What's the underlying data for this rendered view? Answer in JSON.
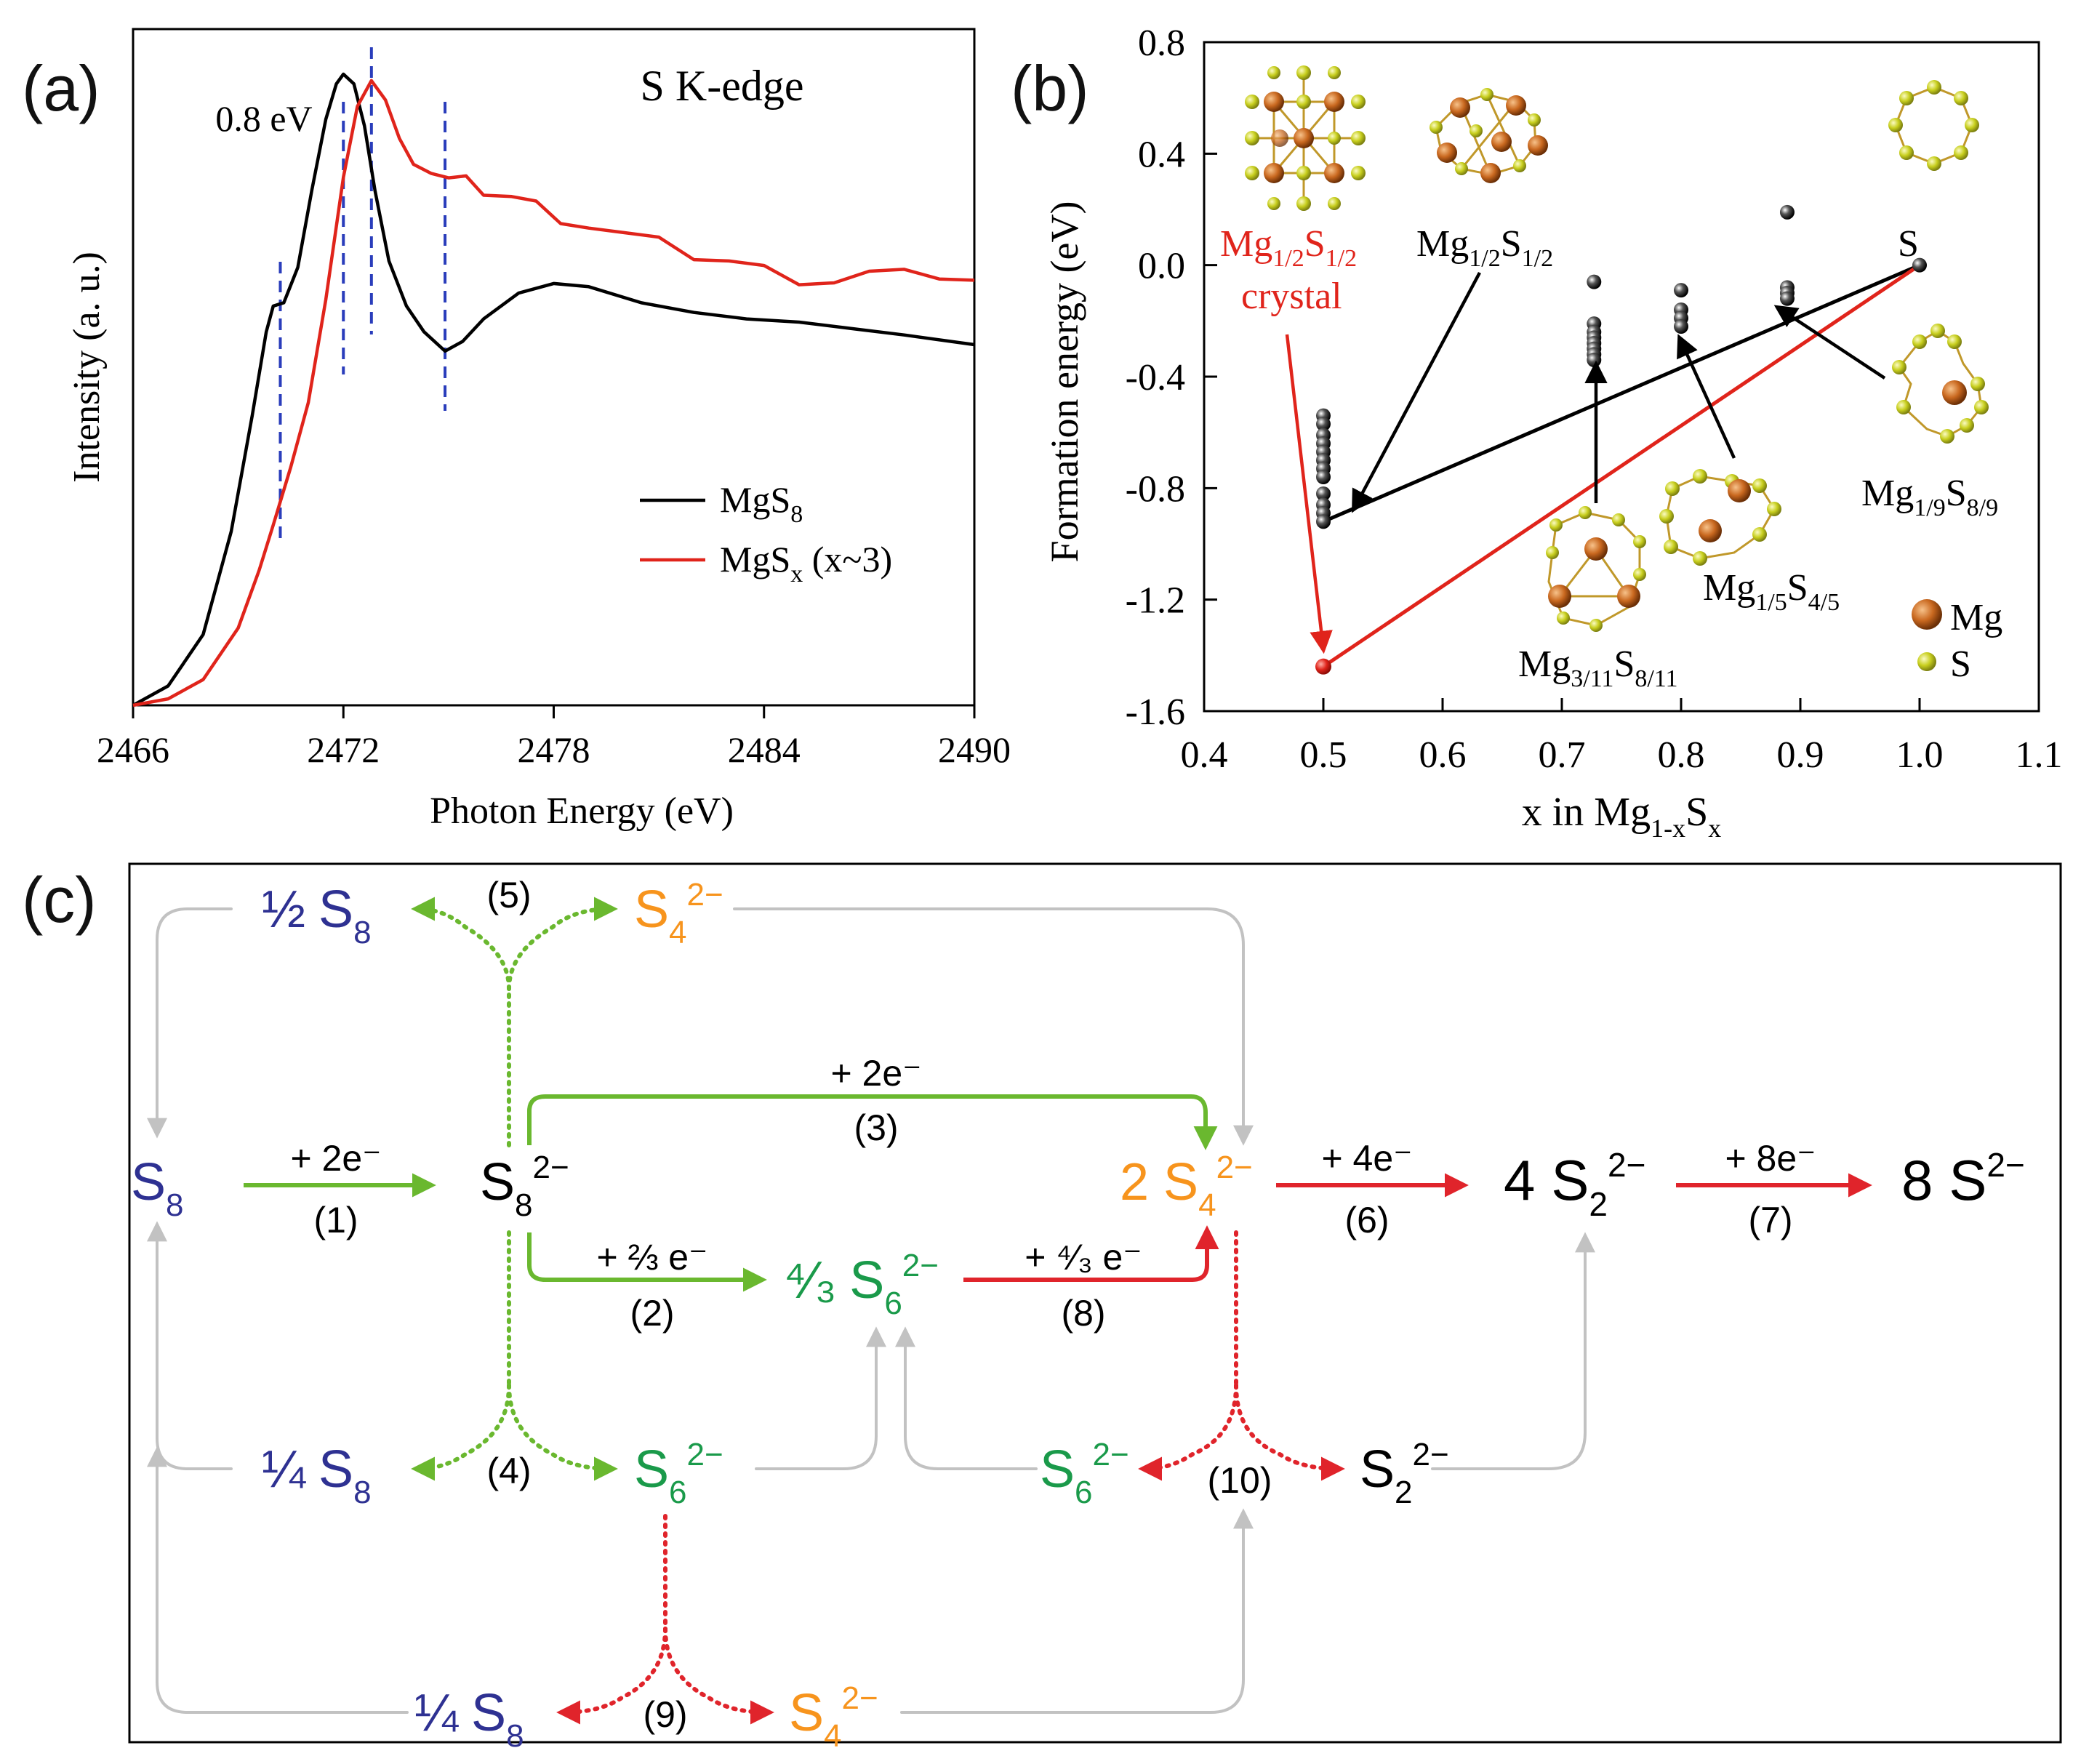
{
  "panel_a": {
    "label": "(a)",
    "title": "S K-edge",
    "annotation": "0.8 eV",
    "legend": {
      "mgs8": {
        "text": "MgS",
        "sub": "8",
        "color": "#000000"
      },
      "mgsx": {
        "text": "MgS",
        "sub": "x",
        "suffix": " (x~3)",
        "color": "#e0241b"
      }
    },
    "vline_color": "#2a3dbb"
  },
  "panel_b": {
    "label": "(b)",
    "legend_mg": "Mg",
    "legend_s": "S",
    "mg_color": "#c9681f",
    "s_color": "#c8cf1e",
    "labels": {
      "crystal_main": "Mg",
      "crystal_sub1": "1/2",
      "crystal_s": "S",
      "crystal_sub2": "1/2",
      "crystal_word": "crystal",
      "mg12_main": "Mg",
      "mg12_sub1": "1/2",
      "mg12_s": "S",
      "mg12_sub2": "1/2",
      "s_label": "S",
      "mg311_main": "Mg",
      "mg311_sub1": "3/11",
      "mg311_s": "S",
      "mg311_sub2": "8/11",
      "mg15_main": "Mg",
      "mg15_sub1": "1/5",
      "mg15_s": "S",
      "mg15_sub2": "4/5",
      "mg19_main": "Mg",
      "mg19_sub1": "1/9",
      "mg19_s": "S",
      "mg19_sub2": "8/9"
    }
  },
  "panel_c": {
    "label": "(c)",
    "colors": {
      "blue": "#2e3192",
      "orange": "#f7941d",
      "green": "#1a9a4a",
      "black": "#000000",
      "lgreen": "#6ab82f",
      "red": "#e0242b",
      "gray": "#c2c2c2"
    },
    "species": {
      "s8_main": "S",
      "s8_sub": "8",
      "s8_2m": "S",
      "s8_2m_sub": "8",
      "s8_2m_sup": "2−",
      "half_s8_coef": "½",
      "half_s8": "S",
      "half_s8_sub": "8",
      "s4_top": "S",
      "s4_top_sub": "4",
      "s4_top_sup": "2−",
      "two_s4_coef": "2",
      "two_s4": "S",
      "two_s4_sub": "4",
      "two_s4_sup": "2−",
      "four_s2_coef": "4",
      "four_s2": "S",
      "four_s2_sub": "2",
      "four_s2_sup": "2−",
      "eight_s_coef": "8",
      "eight_s": "S",
      "eight_s_sup": "2−",
      "fourthirds_coef": "⁴⁄₃",
      "s6_mid": "S",
      "s6_mid_sub": "6",
      "s6_mid_sup": "2−",
      "quarter_s8_a_coef": "¼",
      "quarter_s8_a": "S",
      "quarter_s8_a_sub": "8",
      "s6_left": "S",
      "s6_left_sub": "6",
      "s6_left_sup": "2−",
      "s6_right": "S",
      "s6_right_sub": "6",
      "s6_right_sup": "2−",
      "s2_right": "S",
      "s2_right_sub": "2",
      "s2_right_sup": "2−",
      "quarter_s8_b_coef": "¼",
      "quarter_s8_b": "S",
      "quarter_s8_b_sub": "8",
      "s4_bottom": "S",
      "s4_bottom_sub": "4",
      "s4_bottom_sup": "2−"
    },
    "reactions": {
      "r1_e": "+ 2e⁻",
      "r1": "(1)",
      "r2_e": "+ ⅔ e⁻",
      "r2": "(2)",
      "r3_e": "+ 2e⁻",
      "r3": "(3)",
      "r4": "(4)",
      "r5": "(5)",
      "r6_e": "+ 4e⁻",
      "r6": "(6)",
      "r7_e": "+ 8e⁻",
      "r7": "(7)",
      "r8_e": "+ ⁴⁄₃ e⁻",
      "r8": "(8)",
      "r9": "(9)",
      "r10": "(10)"
    }
  },
  "chart_data": [
    {
      "type": "line",
      "id": "panel-a",
      "title": "S K-edge",
      "xlabel": "Photon Energy (eV)",
      "ylabel": "Intensity (a. u.)",
      "xlim": [
        2466,
        2490
      ],
      "ylim": [
        0,
        1.05
      ],
      "xticks": [
        2466,
        2472,
        2478,
        2484,
        2490
      ],
      "annotation": "0.8 eV",
      "vlines": [
        2470.2,
        2472.0,
        2472.8,
        2474.9
      ],
      "series": [
        {
          "name": "MgS8",
          "color": "#000000",
          "x": [
            2466.0,
            2467.0,
            2468.0,
            2468.8,
            2469.4,
            2469.8,
            2470.0,
            2470.3,
            2470.7,
            2471.1,
            2471.5,
            2471.8,
            2472.0,
            2472.3,
            2472.6,
            2472.9,
            2473.3,
            2473.8,
            2474.3,
            2474.9,
            2475.4,
            2476.0,
            2477.0,
            2478.0,
            2479.0,
            2480.5,
            2482.0,
            2483.5,
            2485.0,
            2486.5,
            2488.0,
            2490.0
          ],
          "y": [
            0.0,
            0.03,
            0.11,
            0.27,
            0.45,
            0.58,
            0.62,
            0.625,
            0.68,
            0.8,
            0.91,
            0.965,
            0.98,
            0.965,
            0.9,
            0.8,
            0.69,
            0.62,
            0.58,
            0.55,
            0.565,
            0.6,
            0.64,
            0.655,
            0.65,
            0.625,
            0.61,
            0.6,
            0.595,
            0.585,
            0.575,
            0.56
          ]
        },
        {
          "name": "MgSx (x~3)",
          "color": "#e0241b",
          "x": [
            2466.0,
            2467.0,
            2468.0,
            2469.0,
            2469.6,
            2470.0,
            2470.5,
            2471.0,
            2471.5,
            2472.0,
            2472.4,
            2472.8,
            2473.2,
            2473.6,
            2474.0,
            2474.5,
            2475.0,
            2475.5,
            2476.0,
            2476.8,
            2477.5,
            2478.2,
            2479.0,
            2480.0,
            2481.0,
            2482.0,
            2483.0,
            2484.0,
            2485.0,
            2486.0,
            2487.0,
            2488.0,
            2489.0,
            2490.0
          ],
          "y": [
            0.0,
            0.01,
            0.04,
            0.12,
            0.21,
            0.28,
            0.37,
            0.47,
            0.63,
            0.82,
            0.93,
            0.97,
            0.94,
            0.88,
            0.84,
            0.83,
            0.815,
            0.81,
            0.8,
            0.79,
            0.775,
            0.76,
            0.745,
            0.73,
            0.715,
            0.7,
            0.69,
            0.675,
            0.665,
            0.66,
            0.67,
            0.665,
            0.67,
            0.66
          ]
        }
      ]
    },
    {
      "type": "scatter",
      "id": "panel-b",
      "xlabel": "x in Mg1-xSx",
      "ylabel": "Formation energy (eV)",
      "xlim": [
        0.4,
        1.1
      ],
      "ylim": [
        -1.6,
        0.8
      ],
      "xticks": [
        0.4,
        0.5,
        0.6,
        0.7,
        0.8,
        0.9,
        1.0,
        1.1
      ],
      "yticks": [
        0.8,
        0.4,
        0.0,
        -0.4,
        -0.8,
        -1.2,
        -1.6
      ],
      "series": [
        {
          "name": "clusters",
          "color": "#000000",
          "x": [
            0.5,
            0.5,
            0.5,
            0.5,
            0.5,
            0.5,
            0.5,
            0.5,
            0.5,
            0.5,
            0.5,
            0.5,
            0.727,
            0.727,
            0.727,
            0.727,
            0.727,
            0.727,
            0.727,
            0.727,
            0.8,
            0.8,
            0.8,
            0.8,
            0.889,
            0.889,
            0.889,
            0.889,
            1.0
          ],
          "y": [
            -0.54,
            -0.57,
            -0.61,
            -0.64,
            -0.67,
            -0.7,
            -0.73,
            -0.76,
            -0.82,
            -0.86,
            -0.89,
            -0.92,
            -0.06,
            -0.21,
            -0.24,
            -0.26,
            -0.28,
            -0.3,
            -0.32,
            -0.34,
            -0.09,
            -0.16,
            -0.19,
            -0.22,
            0.19,
            -0.08,
            -0.1,
            -0.12,
            0.0
          ]
        },
        {
          "name": "Mg1/2S1/2 crystal",
          "color": "#e0241b",
          "x": [
            0.5
          ],
          "y": [
            -1.44
          ]
        }
      ],
      "hull_lines": [
        {
          "color": "#000000",
          "x": [
            0.5,
            1.0
          ],
          "y": [
            -0.92,
            0.0
          ]
        },
        {
          "color": "#e0241b",
          "x": [
            0.5,
            1.0
          ],
          "y": [
            -1.44,
            0.0
          ]
        }
      ]
    }
  ]
}
